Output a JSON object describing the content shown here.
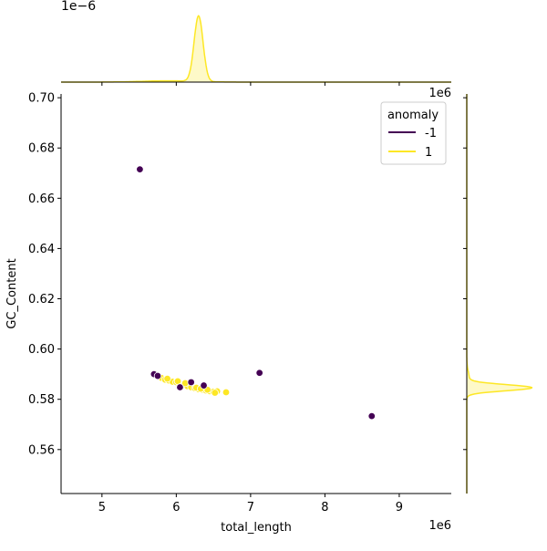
{
  "chart_data": {
    "type": "scatter",
    "title": "",
    "xlabel": "total_length",
    "ylabel": "GC_Content",
    "x_offset_label": "1e6",
    "y_offset_label": "",
    "xlim": [
      4.45,
      9.7
    ],
    "ylim": [
      0.5425,
      0.7015
    ],
    "x_ticks": [
      5,
      6,
      7,
      8,
      9
    ],
    "y_ticks": [
      0.56,
      0.58,
      0.6,
      0.62,
      0.64,
      0.66,
      0.68,
      0.7
    ],
    "grid": false,
    "legend": {
      "title": "anomaly",
      "placement": "top-right"
    },
    "series": [
      {
        "name": "-1",
        "color": "#440154",
        "points": [
          [
            5.51,
            0.6715
          ],
          [
            7.12,
            0.5905
          ],
          [
            8.63,
            0.5733
          ],
          [
            5.7,
            0.59
          ],
          [
            5.75,
            0.5893
          ],
          [
            6.05,
            0.5848
          ],
          [
            6.2,
            0.5868
          ],
          [
            6.37,
            0.5855
          ]
        ]
      },
      {
        "name": "1",
        "color": "#fde725",
        "points": [
          [
            5.8,
            0.5885
          ],
          [
            5.85,
            0.5878
          ],
          [
            5.9,
            0.5875
          ],
          [
            5.95,
            0.587
          ],
          [
            6.0,
            0.5868
          ],
          [
            6.05,
            0.5862
          ],
          [
            6.1,
            0.5858
          ],
          [
            6.15,
            0.5852
          ],
          [
            6.2,
            0.5848
          ],
          [
            6.25,
            0.5844
          ],
          [
            6.3,
            0.584
          ],
          [
            6.35,
            0.5838
          ],
          [
            6.4,
            0.5835
          ],
          [
            6.45,
            0.5832
          ],
          [
            6.5,
            0.583
          ],
          [
            6.55,
            0.5832
          ],
          [
            6.67,
            0.5828
          ],
          [
            6.52,
            0.5826
          ],
          [
            5.88,
            0.5882
          ],
          [
            6.02,
            0.5872
          ],
          [
            6.12,
            0.5864
          ],
          [
            6.27,
            0.5846
          ],
          [
            6.33,
            0.5842
          ],
          [
            6.42,
            0.5838
          ]
        ]
      }
    ],
    "top_marginal": {
      "offset_label": "1e−6",
      "mode": 6.3,
      "sd": 0.06,
      "color": "#fde725"
    },
    "right_marginal": {
      "mode": 0.5846,
      "sd": 0.0012,
      "color": "#fde725"
    }
  }
}
